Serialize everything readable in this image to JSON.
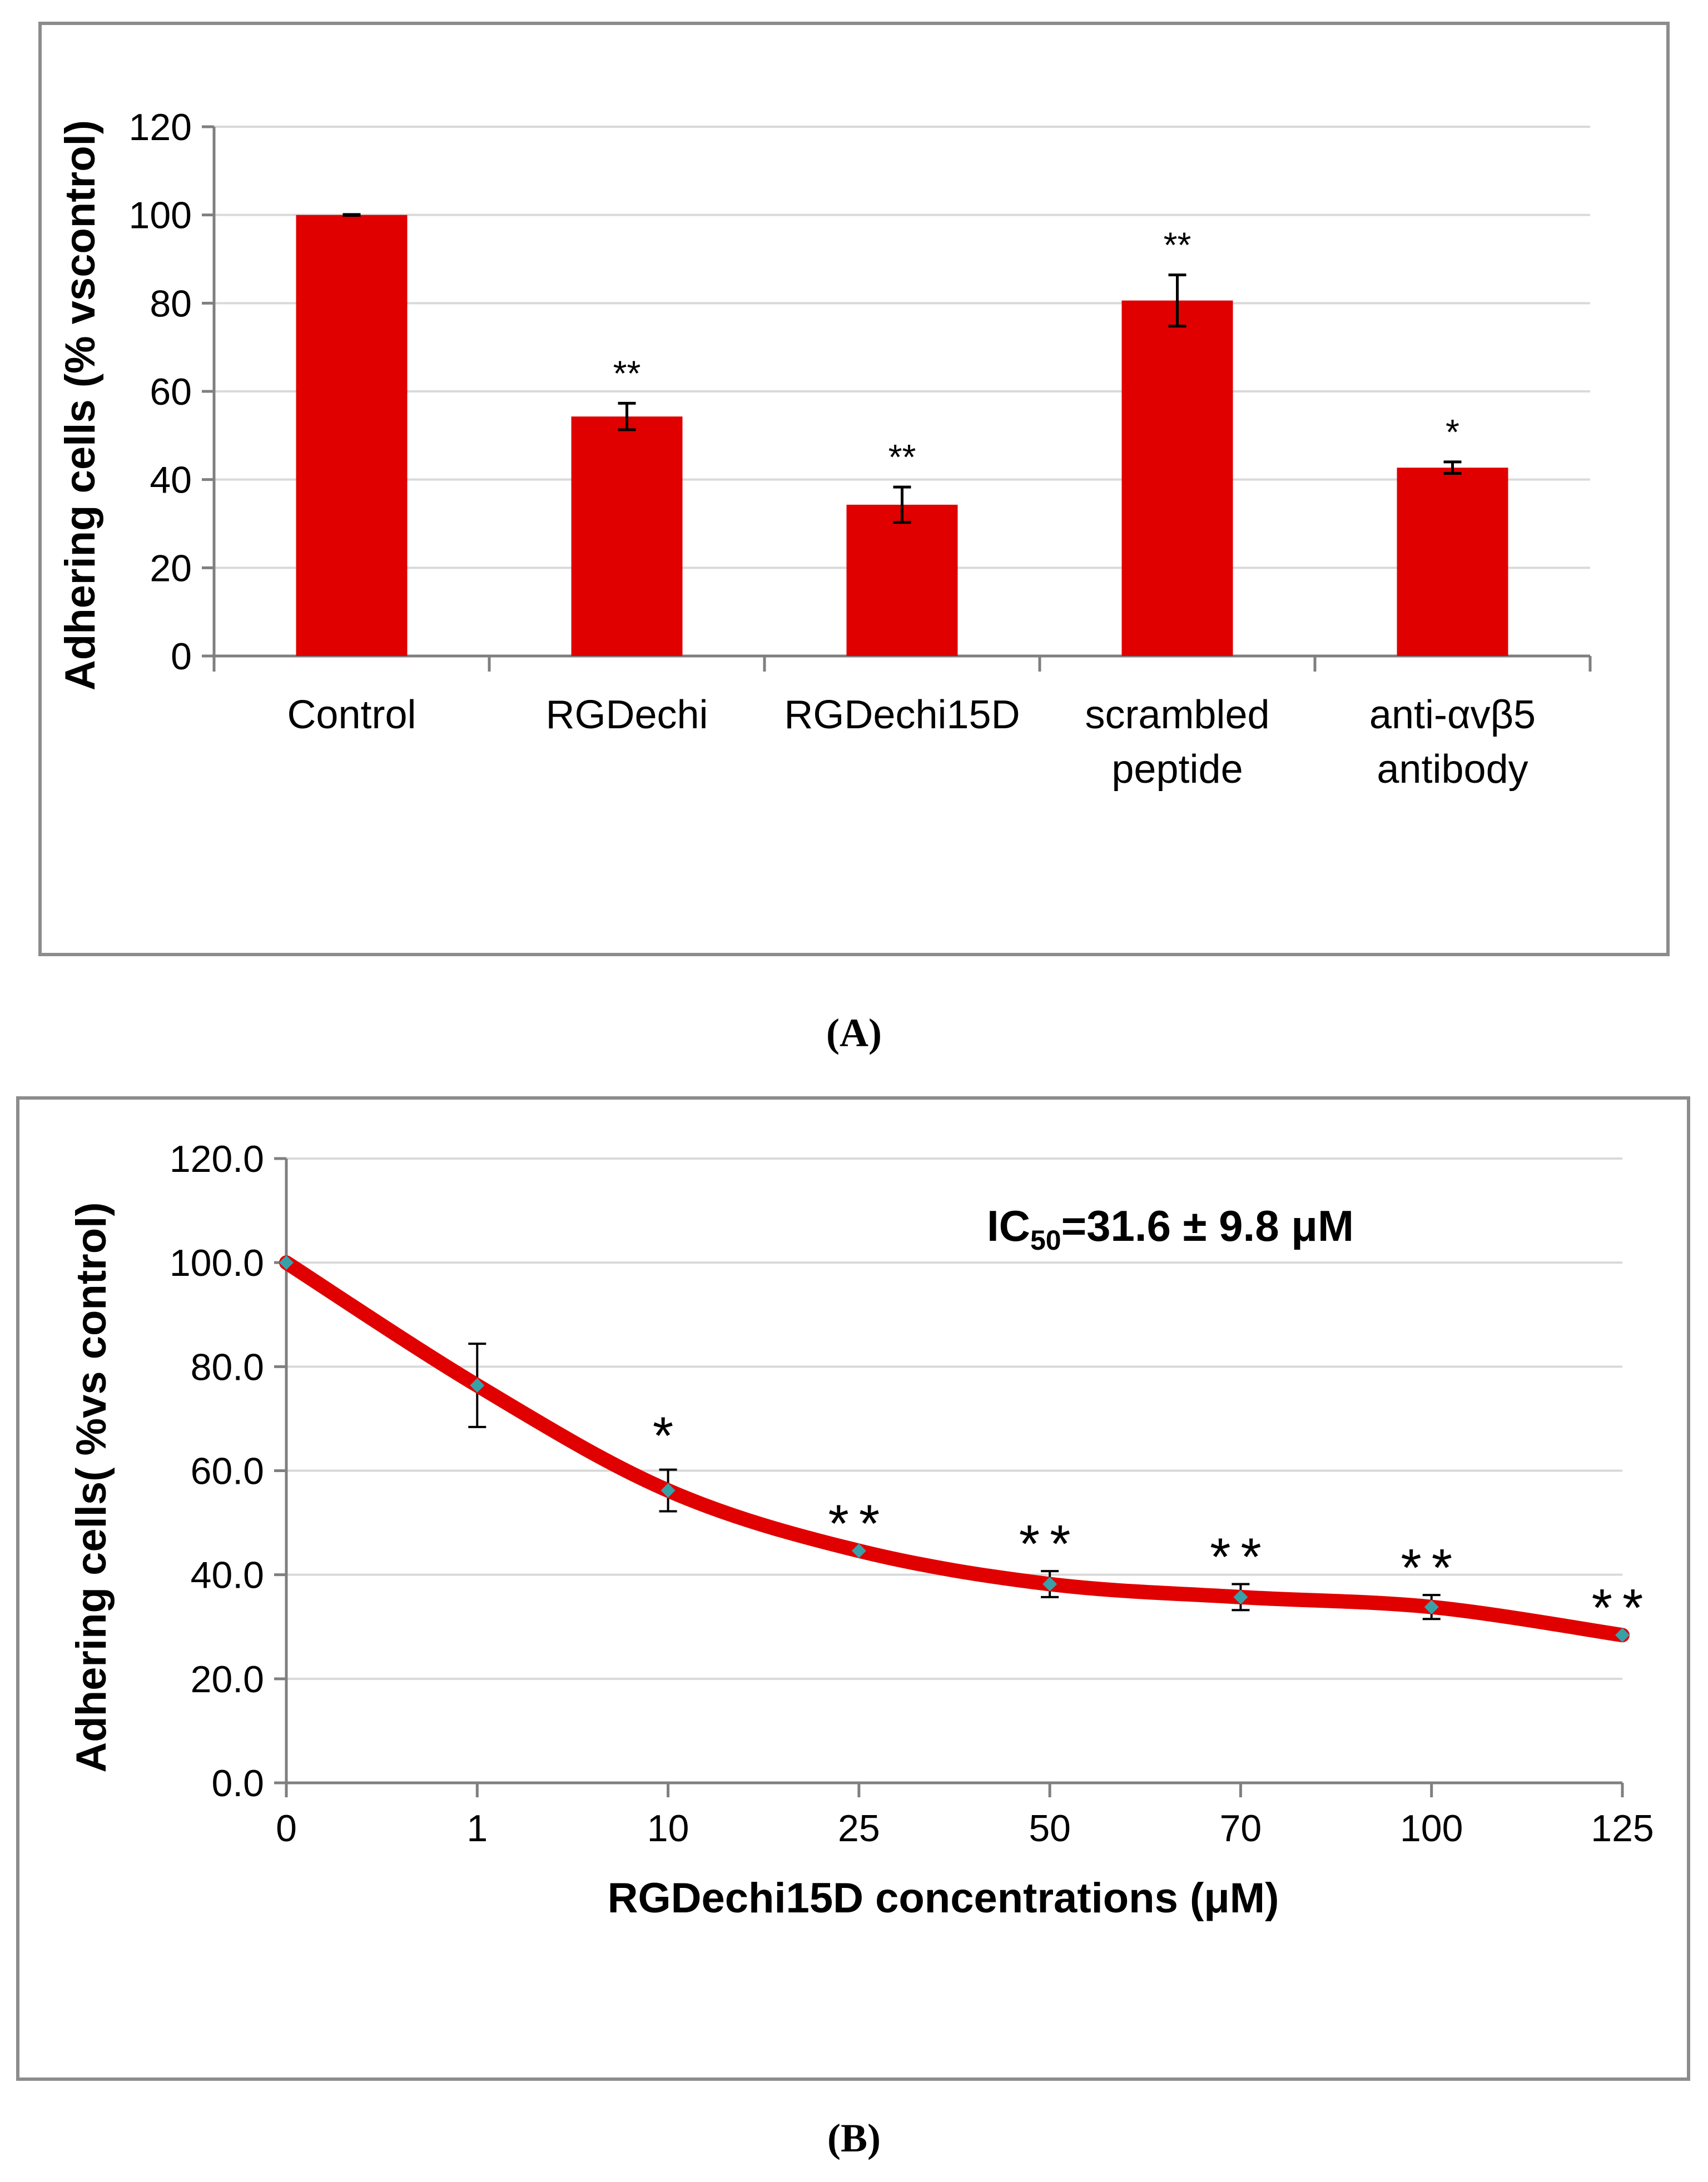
{
  "colors": {
    "bar": "#e00000",
    "line": "#e00000",
    "marker": "#3aa0a8",
    "grid": "#d9d9d9",
    "axis": "#7f7f7f",
    "frame": "#8c8c8c",
    "text": "#000000"
  },
  "panels": {
    "a": "(A)",
    "b": "(B)",
    "a_letter": "A",
    "b_letter": "B"
  },
  "chart_data": [
    {
      "type": "bar",
      "panel": "A",
      "title": "",
      "xlabel": "",
      "ylabel": "Adhering cells (% vscontrol)",
      "ylim": [
        0,
        120
      ],
      "yticks": [
        "0",
        "20",
        "40",
        "60",
        "80",
        "100",
        "120"
      ],
      "categories": [
        "Control",
        "RGDechi",
        "RGDechi15D",
        "scrambled peptide",
        "anti-αvβ5 antibody"
      ],
      "category_lines": [
        [
          "Control"
        ],
        [
          "RGDechi"
        ],
        [
          "RGDechi15D"
        ],
        [
          "scrambled",
          "peptide"
        ],
        [
          "anti-αvβ5",
          "antibody"
        ]
      ],
      "values": [
        100,
        54.3,
        34.3,
        80.6,
        42.7
      ],
      "errors": [
        0.1,
        3.0,
        4.0,
        5.8,
        1.3
      ],
      "annotations": [
        "",
        "**",
        "**",
        "**",
        "*"
      ],
      "grid": true
    },
    {
      "type": "line",
      "panel": "B",
      "title": "",
      "annotation_text": "IC",
      "annotation_sub": "50",
      "annotation_rest": "=31.6 ± 9.8 μM",
      "xlabel": "RGDechi15D concentrations (μM)",
      "ylabel": "Adhering cells( %vs control)",
      "ylim": [
        0,
        120
      ],
      "yticks": [
        "0.0",
        "20.0",
        "40.0",
        "60.0",
        "80.0",
        "100.0",
        "120.0"
      ],
      "x": [
        "0",
        "1",
        "10",
        "25",
        "50",
        "70",
        "100",
        "125"
      ],
      "values": [
        100,
        76.4,
        56.2,
        44.6,
        38.2,
        35.7,
        33.8,
        28.4
      ],
      "errors": [
        0,
        8.0,
        4.0,
        0,
        2.5,
        2.5,
        2.3,
        0
      ],
      "annotations": [
        "",
        "",
        "*",
        "**",
        "**",
        "**",
        "**",
        "**"
      ],
      "grid": true
    }
  ]
}
